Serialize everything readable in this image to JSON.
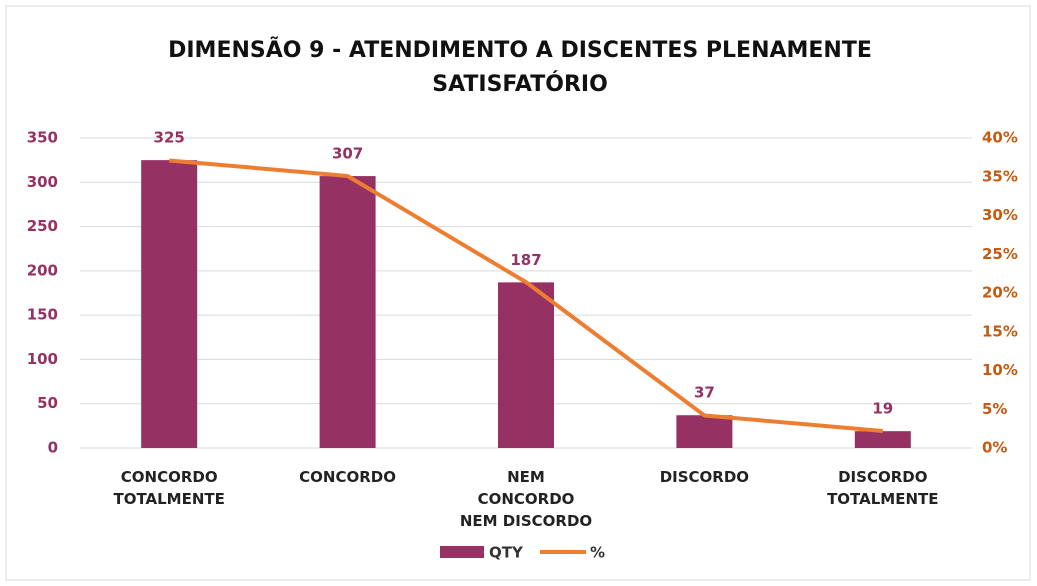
{
  "chart_data": {
    "type": "bar_line",
    "title": "DIMENSÃO 9 - ATENDIMENTO A DISCENTES PLENAMENTE SATISFATÓRIO",
    "categories": [
      "CONCORDO TOTALMENTE",
      "CONCORDO",
      "NEM CONCORDO NEM DISCORDO",
      "DISCORDO",
      "DISCORDO TOTALMENTE"
    ],
    "series": [
      {
        "name": "QTY",
        "type": "bar",
        "color": "#953163",
        "values": [
          325,
          307,
          187,
          37,
          19
        ]
      },
      {
        "name": "%",
        "type": "line",
        "axis": "y2",
        "color": "#ed7d31",
        "values": [
          37.1,
          35.1,
          21.4,
          4.2,
          2.2
        ]
      }
    ],
    "ylim": [
      0,
      350
    ],
    "yticks": [
      0,
      50,
      100,
      150,
      200,
      250,
      300,
      350
    ],
    "y2lim": [
      0,
      40
    ],
    "y2ticks": [
      {
        "value": 0,
        "label": "0%"
      },
      {
        "value": 5,
        "label": "5%"
      },
      {
        "value": 10,
        "label": "10%"
      },
      {
        "value": 15,
        "label": "15%"
      },
      {
        "value": 20,
        "label": "20%"
      },
      {
        "value": 25,
        "label": "25%"
      },
      {
        "value": 30,
        "label": "30%"
      },
      {
        "value": 35,
        "label": "35%"
      },
      {
        "value": 40,
        "label": "40%"
      }
    ],
    "grid": true,
    "legend": "bottom"
  }
}
